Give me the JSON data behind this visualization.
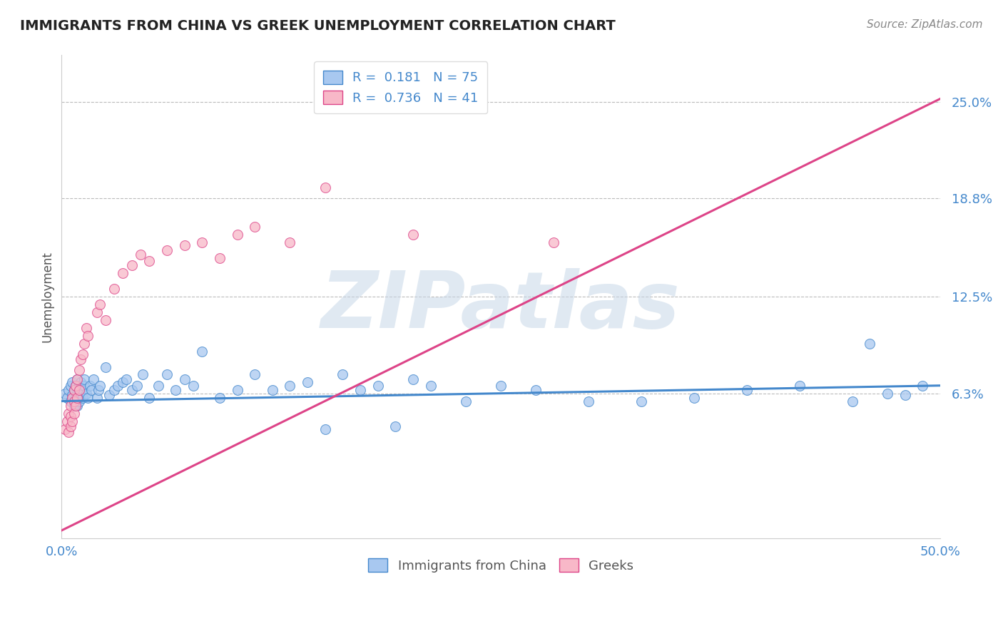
{
  "title": "IMMIGRANTS FROM CHINA VS GREEK UNEMPLOYMENT CORRELATION CHART",
  "source": "Source: ZipAtlas.com",
  "ylabel": "Unemployment",
  "xlim": [
    0.0,
    0.5
  ],
  "ylim": [
    -0.03,
    0.28
  ],
  "yticks": [
    0.063,
    0.125,
    0.188,
    0.25
  ],
  "ytick_labels": [
    "6.3%",
    "12.5%",
    "18.8%",
    "25.0%"
  ],
  "xticks": [
    0.0,
    0.1,
    0.2,
    0.3,
    0.4,
    0.5
  ],
  "xtick_labels": [
    "0.0%",
    "",
    "",
    "",
    "",
    "50.0%"
  ],
  "blue_R": 0.181,
  "blue_N": 75,
  "pink_R": 0.736,
  "pink_N": 41,
  "blue_color": "#a8c8f0",
  "pink_color": "#f8b8c8",
  "blue_line_color": "#4488cc",
  "pink_line_color": "#dd4488",
  "watermark": "ZIPatlas",
  "watermark_color": "#cccccc",
  "legend_label_blue": "Immigrants from China",
  "legend_label_pink": "Greeks",
  "blue_x": [
    0.002,
    0.003,
    0.004,
    0.005,
    0.005,
    0.006,
    0.006,
    0.007,
    0.007,
    0.008,
    0.008,
    0.008,
    0.009,
    0.009,
    0.009,
    0.01,
    0.01,
    0.01,
    0.01,
    0.011,
    0.011,
    0.012,
    0.012,
    0.013,
    0.013,
    0.014,
    0.015,
    0.016,
    0.017,
    0.018,
    0.02,
    0.021,
    0.022,
    0.025,
    0.027,
    0.03,
    0.032,
    0.035,
    0.037,
    0.04,
    0.043,
    0.046,
    0.05,
    0.055,
    0.06,
    0.065,
    0.07,
    0.075,
    0.08,
    0.09,
    0.1,
    0.11,
    0.12,
    0.13,
    0.14,
    0.15,
    0.16,
    0.17,
    0.18,
    0.19,
    0.2,
    0.21,
    0.23,
    0.25,
    0.27,
    0.3,
    0.33,
    0.36,
    0.39,
    0.42,
    0.45,
    0.46,
    0.47,
    0.48,
    0.49
  ],
  "blue_y": [
    0.063,
    0.06,
    0.065,
    0.058,
    0.068,
    0.062,
    0.07,
    0.055,
    0.065,
    0.06,
    0.058,
    0.068,
    0.063,
    0.072,
    0.055,
    0.06,
    0.065,
    0.058,
    0.068,
    0.062,
    0.07,
    0.065,
    0.06,
    0.068,
    0.072,
    0.063,
    0.06,
    0.068,
    0.065,
    0.072,
    0.06,
    0.065,
    0.068,
    0.08,
    0.062,
    0.065,
    0.068,
    0.07,
    0.072,
    0.065,
    0.068,
    0.075,
    0.06,
    0.068,
    0.075,
    0.065,
    0.072,
    0.068,
    0.09,
    0.06,
    0.065,
    0.075,
    0.065,
    0.068,
    0.07,
    0.04,
    0.075,
    0.065,
    0.068,
    0.042,
    0.072,
    0.068,
    0.058,
    0.068,
    0.065,
    0.058,
    0.058,
    0.06,
    0.065,
    0.068,
    0.058,
    0.095,
    0.063,
    0.062,
    0.068
  ],
  "pink_x": [
    0.002,
    0.003,
    0.004,
    0.004,
    0.005,
    0.005,
    0.005,
    0.006,
    0.006,
    0.007,
    0.007,
    0.007,
    0.008,
    0.008,
    0.009,
    0.009,
    0.01,
    0.01,
    0.011,
    0.012,
    0.013,
    0.014,
    0.015,
    0.02,
    0.022,
    0.025,
    0.03,
    0.035,
    0.04,
    0.045,
    0.05,
    0.06,
    0.07,
    0.08,
    0.09,
    0.1,
    0.11,
    0.13,
    0.15,
    0.2,
    0.28
  ],
  "pink_y": [
    0.04,
    0.045,
    0.038,
    0.05,
    0.042,
    0.048,
    0.055,
    0.06,
    0.045,
    0.058,
    0.065,
    0.05,
    0.055,
    0.068,
    0.06,
    0.072,
    0.065,
    0.078,
    0.085,
    0.088,
    0.095,
    0.105,
    0.1,
    0.115,
    0.12,
    0.11,
    0.13,
    0.14,
    0.145,
    0.152,
    0.148,
    0.155,
    0.158,
    0.16,
    0.15,
    0.165,
    0.17,
    0.16,
    0.195,
    0.165,
    0.16
  ],
  "blue_trend": [
    0.0,
    0.5,
    0.058,
    0.068
  ],
  "pink_trend": [
    0.0,
    0.5,
    -0.025,
    0.252
  ]
}
